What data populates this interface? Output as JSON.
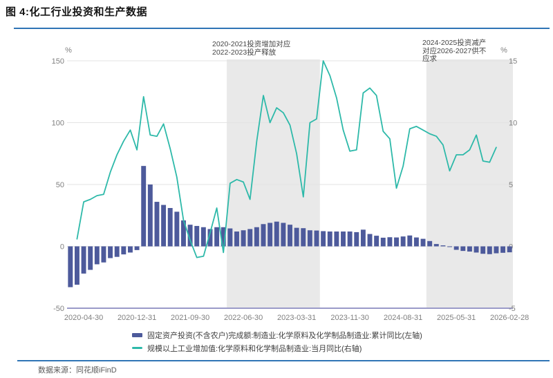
{
  "page": {
    "title": "图 4:化工行业投资和生产数据",
    "source_label": "数据来源：同花顺iFinD"
  },
  "colors": {
    "accent_blue": "#2e74b5",
    "bar": "#4d5a9b",
    "line": "#2db9a9",
    "band": "#e9e9e9",
    "grid": "#e3e3e3",
    "axis_line": "#9a9ac8",
    "tick_text": "#7f7f7f"
  },
  "annotations": [
    {
      "text": "2020-2021投资增加对应\n2022-2023投产释放"
    },
    {
      "text": "2024-2025投资减产\n对应2026-2027供不\n应求"
    }
  ],
  "chart_data": {
    "type": "bar+line",
    "left_axis": {
      "label": "%",
      "min": -50,
      "max": 150,
      "ticks": [
        150,
        100,
        50,
        0,
        -50
      ]
    },
    "right_axis": {
      "label": "%",
      "min": -5,
      "max": 15,
      "ticks": [
        15,
        10,
        5,
        0,
        -5
      ]
    },
    "categories": [
      "2020-02",
      "2020-03",
      "2020-04",
      "2020-05",
      "2020-06",
      "2020-07",
      "2020-08",
      "2020-09",
      "2020-10",
      "2020-11",
      "2020-12",
      "2021-02",
      "2021-03",
      "2021-04",
      "2021-05",
      "2021-06",
      "2021-07",
      "2021-08",
      "2021-09",
      "2021-10",
      "2021-11",
      "2021-12",
      "2022-02",
      "2022-03",
      "2022-04",
      "2022-05",
      "2022-06",
      "2022-07",
      "2022-08",
      "2022-09",
      "2022-10",
      "2022-11",
      "2022-12",
      "2023-02",
      "2023-03",
      "2023-04",
      "2023-05",
      "2023-06",
      "2023-07",
      "2023-08",
      "2023-09",
      "2023-10",
      "2023-11",
      "2023-12",
      "2024-02",
      "2024-03",
      "2024-04",
      "2024-05",
      "2024-06",
      "2024-07",
      "2024-08",
      "2024-09",
      "2024-10",
      "2024-11",
      "2024-12",
      "2025-02",
      "2025-03",
      "2025-04",
      "2025-05",
      "2025-06",
      "2025-07",
      "2025-08",
      "2025-09",
      "2025-10",
      "2025-11",
      "2025-12",
      "2026-02"
    ],
    "x_ticks": [
      {
        "label": "2020-04-30",
        "month": "2020-04"
      },
      {
        "label": "2020-12-31",
        "month": "2020-12"
      },
      {
        "label": "2021-09-30",
        "month": "2021-09"
      },
      {
        "label": "2022-06-30",
        "month": "2022-06"
      },
      {
        "label": "2023-03-31",
        "month": "2023-03"
      },
      {
        "label": "2023-11-30",
        "month": "2023-11"
      },
      {
        "label": "2024-08-31",
        "month": "2024-08"
      },
      {
        "label": "2025-05-31",
        "month": "2025-05"
      },
      {
        "label": "2026-02-28",
        "month": "2026-02"
      }
    ],
    "shaded_regions": [
      {
        "from": "2022-04",
        "to": "2023-06"
      },
      {
        "from": "2024-12",
        "to": "2026-02"
      }
    ],
    "series": [
      {
        "name": "固定资产投资(不含农户)完成额:制造业:化学原料及化学制品制造业:累计同比(左轴)",
        "type": "bar",
        "axis": "left",
        "color": "#4d5a9b",
        "values": [
          -33,
          -31,
          -22,
          -19,
          -14.5,
          -13,
          -9.5,
          -8.5,
          -6.5,
          -5,
          -3,
          65,
          50,
          36,
          33.5,
          31,
          28,
          21,
          17.5,
          16.5,
          15.5,
          14,
          15.5,
          15.5,
          14.5,
          12,
          13,
          14,
          15.5,
          18,
          19,
          20,
          19,
          17.5,
          15,
          14.7,
          13,
          12.8,
          12.3,
          12,
          12,
          12,
          12,
          11.5,
          13.5,
          10,
          8.6,
          7,
          7.4,
          7.2,
          8,
          8.8,
          7.2,
          6.1,
          4.3,
          1.9,
          0.8,
          -0.5,
          -2.8,
          -3.7,
          -4.2,
          -5,
          -6,
          -6.3,
          -5.6,
          -5.2,
          -4.8
        ]
      },
      {
        "name": "规模以上工业增加值:化学原料和化学制品制造业:当月同比(右轴)",
        "type": "line",
        "axis": "right",
        "color": "#2db9a9",
        "values": [
          null,
          0.6,
          3.6,
          3.8,
          4.1,
          4.2,
          6,
          7.4,
          8.5,
          9.4,
          7.8,
          12.1,
          9,
          8.9,
          9.9,
          7.9,
          5.6,
          2.1,
          0.5,
          -0.9,
          -0.8,
          1.1,
          3.1,
          -0.5,
          5.1,
          5.4,
          5.2,
          3.8,
          8.5,
          12.2,
          10,
          11.2,
          10.8,
          9.8,
          7.5,
          4,
          10,
          10.3,
          15,
          13.8,
          12,
          9.4,
          7.7,
          7.8,
          12.4,
          12.8,
          12.2,
          9.3,
          8.7,
          4.7,
          6.5,
          9.5,
          9.7,
          9.4,
          9.1,
          8.9,
          8.2,
          6.1,
          7.4,
          7.4,
          7.8,
          9,
          6.9,
          6.8,
          8,
          null,
          null
        ]
      }
    ]
  }
}
